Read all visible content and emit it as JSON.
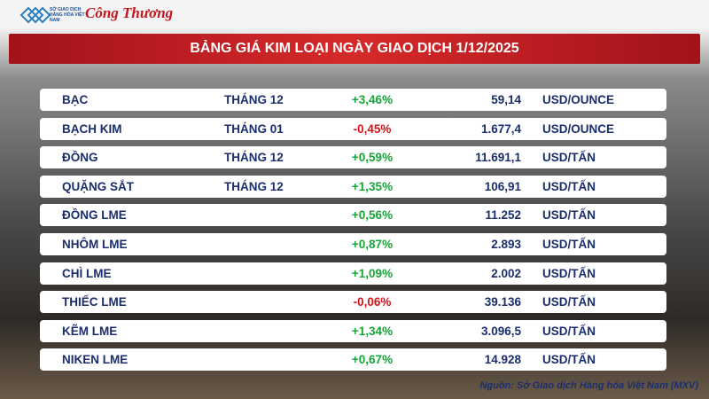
{
  "header": {
    "logo_text": "SỞ GIAO DỊCH HÀNG HÓA VIỆT NAM",
    "brand": "Công Thương",
    "title": "BẢNG GIÁ KIM LOẠI NGÀY GIAO DỊCH 1/12/2025"
  },
  "table": {
    "rows": [
      {
        "name": "BẠC",
        "month": "THÁNG 12",
        "change": "+3,46%",
        "price": "59,14",
        "unit": "USD/OUNCE"
      },
      {
        "name": "BẠCH KIM",
        "month": "THÁNG 01",
        "change": "-0,45%",
        "price": "1.677,4",
        "unit": "USD/OUNCE"
      },
      {
        "name": "ĐỒNG",
        "month": "THÁNG 12",
        "change": "+0,59%",
        "price": "11.691,1",
        "unit": "USD/TẤN"
      },
      {
        "name": "QUẶNG SẮT",
        "month": "THÁNG 12",
        "change": "+1,35%",
        "price": "106,91",
        "unit": "USD/TẤN"
      },
      {
        "name": "ĐỒNG LME",
        "change": "+0,56%",
        "price": "11.252",
        "unit": "USD/TẤN"
      },
      {
        "name": "NHÔM LME",
        "change": "+0,87%",
        "price": "2.893",
        "unit": "USD/TẤN"
      },
      {
        "name": "CHÌ LME",
        "change": "+1,09%",
        "price": "2.002",
        "unit": "USD/TẤN"
      },
      {
        "name": "THIẾC LME",
        "change": "-0,06%",
        "price": "39.136",
        "unit": "USD/TẤN"
      },
      {
        "name": "KẼM LME",
        "change": "+1,34%",
        "price": "3.096,5",
        "unit": "USD/TẤN"
      },
      {
        "name": "NIKEN LME",
        "change": "+0,67%",
        "price": "14.928",
        "unit": "USD/TẤN"
      }
    ]
  },
  "footer": {
    "source": "Nguồn: Sở Giao dịch Hàng hóa Việt Nam (MXV)"
  }
}
